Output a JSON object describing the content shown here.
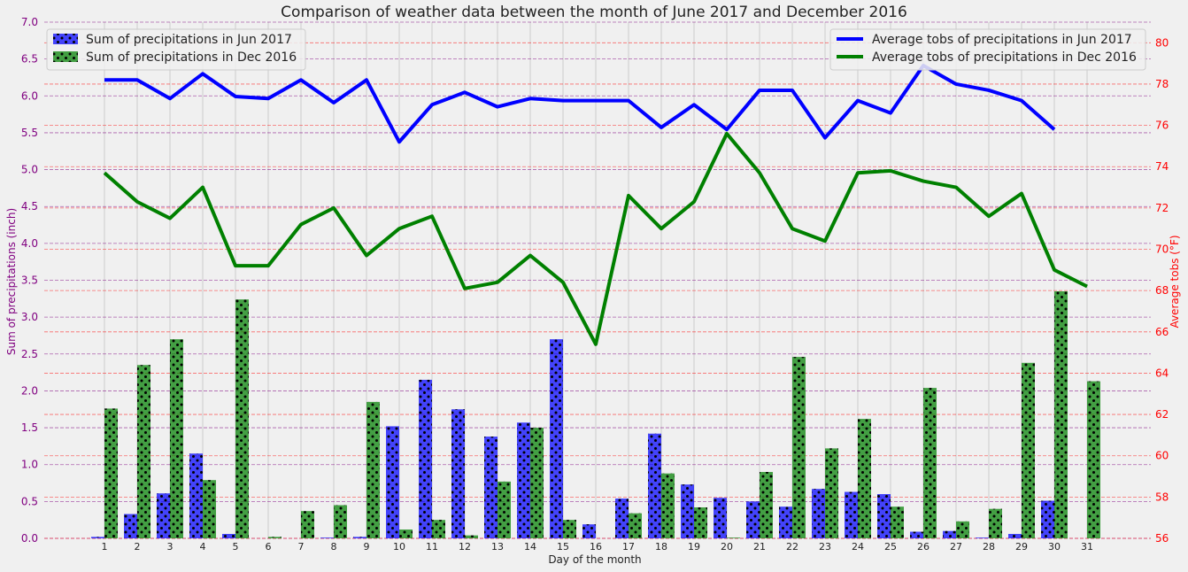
{
  "chart_data": {
    "type": "bar",
    "title": "Comparison of weather data between the month of June 2017 and December 2016",
    "xlabel": "Day of the month",
    "ylabel_left": "Sum of precipitations (inch)",
    "ylabel_right": "Average tobs (°F)",
    "left_axis_color": "#800080",
    "right_axis_color": "#ff0000",
    "ylim_left": [
      0,
      7
    ],
    "ylim_right": [
      56,
      81
    ],
    "left_ticks": [
      "0.0",
      "0.5",
      "1.0",
      "1.5",
      "2.0",
      "2.5",
      "3.0",
      "3.5",
      "4.0",
      "4.5",
      "5.0",
      "5.5",
      "6.0",
      "6.5",
      "7.0"
    ],
    "right_ticks": [
      "56",
      "58",
      "60",
      "62",
      "64",
      "66",
      "68",
      "70",
      "72",
      "74",
      "76",
      "78",
      "80"
    ],
    "categories": [
      "1",
      "2",
      "3",
      "4",
      "5",
      "6",
      "7",
      "8",
      "9",
      "10",
      "11",
      "12",
      "13",
      "14",
      "15",
      "16",
      "17",
      "18",
      "19",
      "20",
      "21",
      "22",
      "23",
      "24",
      "25",
      "26",
      "27",
      "28",
      "29",
      "30",
      "31"
    ],
    "bar_series": [
      {
        "name": "Sum of precipitations in Jun 2017",
        "color": "#0000ff",
        "values": [
          0.02,
          0.33,
          0.61,
          1.15,
          0.06,
          0.0,
          0.0,
          0.01,
          0.02,
          1.52,
          2.15,
          1.75,
          1.38,
          1.57,
          2.7,
          0.19,
          0.54,
          1.42,
          0.73,
          0.55,
          0.5,
          0.43,
          0.67,
          0.63,
          0.6,
          0.09,
          0.1,
          0.01,
          0.06,
          0.51,
          null
        ]
      },
      {
        "name": "Sum of precipitations in Dec 2016",
        "color": "#008000",
        "values": [
          1.76,
          2.35,
          2.7,
          0.79,
          3.24,
          0.02,
          0.37,
          0.45,
          1.85,
          0.12,
          0.25,
          0.04,
          0.77,
          1.5,
          0.25,
          0.0,
          0.34,
          0.88,
          0.42,
          0.01,
          0.9,
          2.46,
          1.22,
          1.62,
          0.43,
          2.04,
          0.23,
          0.4,
          2.38,
          3.35,
          2.13
        ]
      }
    ],
    "line_series": [
      {
        "name": "Average tobs of precipitations in Jun 2017",
        "color": "#0000ff",
        "values": [
          78.2,
          78.2,
          77.3,
          78.5,
          77.4,
          77.3,
          78.2,
          77.1,
          78.2,
          75.2,
          77.0,
          77.6,
          76.9,
          77.3,
          77.2,
          77.2,
          77.2,
          75.9,
          77.0,
          75.8,
          77.7,
          77.7,
          75.4,
          77.2,
          76.6,
          78.9,
          78.0,
          77.7,
          77.2,
          75.8,
          null
        ]
      },
      {
        "name": "Average tobs of precipitations in Dec 2016",
        "color": "#008000",
        "values": [
          73.7,
          72.3,
          71.5,
          73.0,
          69.2,
          69.2,
          71.2,
          72.0,
          69.7,
          71.0,
          71.6,
          68.1,
          68.4,
          69.7,
          68.4,
          65.4,
          72.6,
          71.0,
          72.3,
          75.6,
          73.7,
          71.0,
          70.4,
          73.7,
          73.8,
          73.3,
          73.0,
          71.6,
          72.7,
          69.0,
          68.2
        ]
      }
    ],
    "grid": true,
    "legend_left_position": "top-left",
    "legend_right_position": "top-right"
  }
}
